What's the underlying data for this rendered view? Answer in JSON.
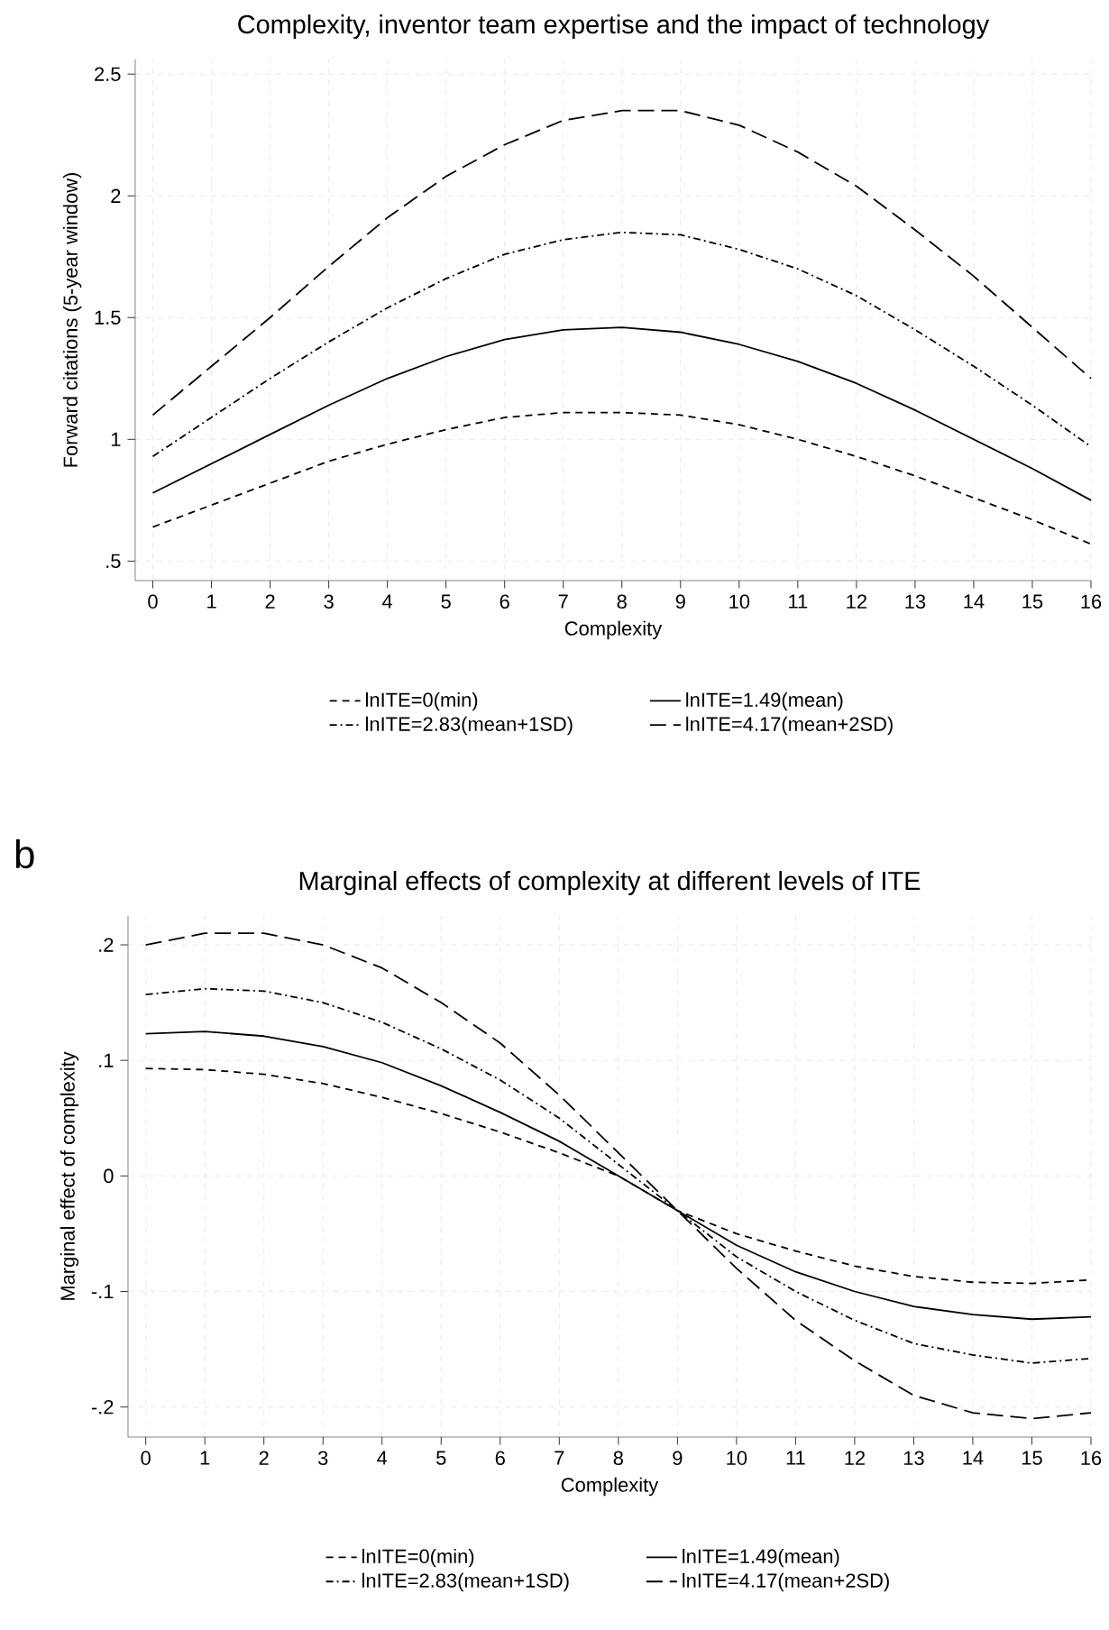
{
  "chart_data": [
    {
      "type": "line",
      "title": "Complexity, inventor team expertise and the impact of technology",
      "xlabel": "Complexity",
      "ylabel": "Forward citations (5-year window)",
      "x": [
        0,
        1,
        2,
        3,
        4,
        5,
        6,
        7,
        8,
        9,
        10,
        11,
        12,
        13,
        14,
        15,
        16
      ],
      "series": [
        {
          "name": "lnITE=0(min)",
          "color": "#000000",
          "line_style": "dashed",
          "values": [
            0.64,
            0.73,
            0.82,
            0.91,
            0.98,
            1.04,
            1.09,
            1.11,
            1.11,
            1.1,
            1.06,
            1.0,
            0.93,
            0.85,
            0.76,
            0.67,
            0.57
          ]
        },
        {
          "name": "lnITE=1.49(mean)",
          "color": "#000000",
          "line_style": "solid",
          "values": [
            0.78,
            0.9,
            1.02,
            1.14,
            1.25,
            1.34,
            1.41,
            1.45,
            1.46,
            1.44,
            1.39,
            1.32,
            1.23,
            1.12,
            1.0,
            0.88,
            0.75
          ]
        },
        {
          "name": "lnITE=2.83(mean+1SD)",
          "color": "#000000",
          "line_style": "dashdot",
          "values": [
            0.93,
            1.09,
            1.25,
            1.4,
            1.54,
            1.66,
            1.76,
            1.82,
            1.85,
            1.84,
            1.78,
            1.7,
            1.59,
            1.45,
            1.3,
            1.14,
            0.97
          ]
        },
        {
          "name": "lnITE=4.17(mean+2SD)",
          "color": "#000000",
          "line_style": "longdash",
          "values": [
            1.1,
            1.3,
            1.5,
            1.71,
            1.91,
            2.08,
            2.21,
            2.31,
            2.35,
            2.35,
            2.29,
            2.18,
            2.04,
            1.86,
            1.67,
            1.46,
            1.25
          ]
        }
      ],
      "xlim": [
        -0.3,
        16
      ],
      "xticks": [
        0,
        1,
        2,
        3,
        4,
        5,
        6,
        7,
        8,
        9,
        10,
        11,
        12,
        13,
        14,
        15,
        16
      ],
      "ylim": [
        0.42,
        2.56
      ],
      "yticks": [
        {
          "value": 0.5,
          "label": ".5"
        },
        1,
        1.5,
        2,
        2.5
      ],
      "grid": true,
      "legend": "bottom",
      "marker": "none"
    },
    {
      "type": "line",
      "title": "Marginal effects of complexity at different levels of ITE",
      "xlabel": "Complexity",
      "ylabel": "Marginal effect of complexity",
      "annotations": [
        "b"
      ],
      "x": [
        0,
        1,
        2,
        3,
        4,
        5,
        6,
        7,
        8,
        9,
        10,
        11,
        12,
        13,
        14,
        15,
        16
      ],
      "series": [
        {
          "name": "lnITE=0(min)",
          "color": "#000000",
          "line_style": "dashed",
          "values": [
            0.093,
            0.092,
            0.088,
            0.08,
            0.068,
            0.054,
            0.038,
            0.02,
            0.0,
            -0.03,
            -0.05,
            -0.065,
            -0.078,
            -0.087,
            -0.092,
            -0.093,
            -0.09
          ]
        },
        {
          "name": "lnITE=1.49(mean)",
          "color": "#000000",
          "line_style": "solid",
          "values": [
            0.123,
            0.125,
            0.121,
            0.112,
            0.098,
            0.078,
            0.055,
            0.03,
            0.0,
            -0.03,
            -0.06,
            -0.083,
            -0.1,
            -0.113,
            -0.12,
            -0.124,
            -0.122
          ]
        },
        {
          "name": "lnITE=2.83(mean+1SD)",
          "color": "#000000",
          "line_style": "dashdot",
          "values": [
            0.157,
            0.162,
            0.16,
            0.15,
            0.133,
            0.11,
            0.083,
            0.05,
            0.01,
            -0.03,
            -0.07,
            -0.1,
            -0.125,
            -0.145,
            -0.155,
            -0.162,
            -0.158
          ]
        },
        {
          "name": "lnITE=4.17(mean+2SD)",
          "color": "#000000",
          "line_style": "longdash",
          "values": [
            0.2,
            0.21,
            0.21,
            0.2,
            0.18,
            0.15,
            0.115,
            0.07,
            0.02,
            -0.03,
            -0.08,
            -0.125,
            -0.16,
            -0.19,
            -0.205,
            -0.21,
            -0.205
          ]
        }
      ],
      "xlim": [
        -0.3,
        16
      ],
      "xticks": [
        0,
        1,
        2,
        3,
        4,
        5,
        6,
        7,
        8,
        9,
        10,
        11,
        12,
        13,
        14,
        15,
        16
      ],
      "ylim": [
        -0.226,
        0.225
      ],
      "yticks": [
        {
          "value": -0.2,
          "label": "-.2"
        },
        {
          "value": -0.1,
          "label": "-.1"
        },
        0,
        {
          "value": 0.1,
          "label": ".1"
        },
        {
          "value": 0.2,
          "label": ".2"
        }
      ],
      "grid": true,
      "legend": "bottom",
      "marker": "none"
    }
  ]
}
